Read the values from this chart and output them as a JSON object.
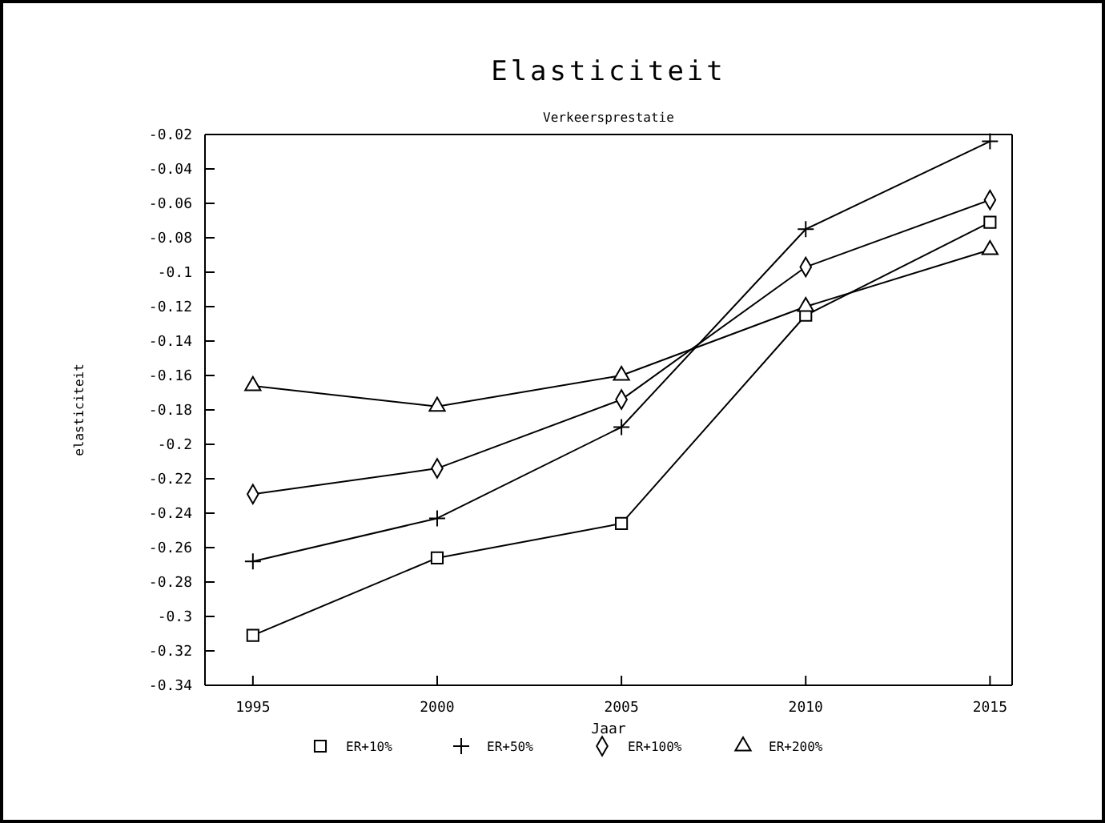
{
  "chart_data": {
    "type": "line",
    "title": "Elasticiteit",
    "subtitle": "Verkeersprestatie",
    "xlabel": "Jaar",
    "ylabel": "elasticiteit",
    "x": [
      1995,
      2000,
      2005,
      2010,
      2015
    ],
    "series": [
      {
        "name": "ER+10%",
        "color": "#000000",
        "marker": "square",
        "values": [
          -0.311,
          -0.266,
          -0.246,
          -0.125,
          -0.071
        ]
      },
      {
        "name": "ER+50%",
        "color": "#000000",
        "marker": "cross",
        "values": [
          -0.268,
          -0.243,
          -0.19,
          -0.075,
          -0.024
        ]
      },
      {
        "name": "ER+100%",
        "color": "#000000",
        "marker": "diamond",
        "values": [
          -0.229,
          -0.214,
          -0.174,
          -0.097,
          -0.058
        ]
      },
      {
        "name": "ER+200%",
        "color": "#000000",
        "marker": "triangle",
        "values": [
          -0.166,
          -0.178,
          -0.16,
          -0.12,
          -0.087
        ]
      }
    ],
    "xlim": [
      1993.7,
      2015.6
    ],
    "xticks": [
      1995,
      2000,
      2005,
      2010,
      2015
    ],
    "ylim": [
      -0.34,
      -0.02
    ],
    "yticks": [
      {
        "value": -0.34,
        "label": "-0.34"
      },
      {
        "value": -0.32,
        "label": "-0.32"
      },
      {
        "value": -0.3,
        "label": "-0.3"
      },
      {
        "value": -0.28,
        "label": "-0.28"
      },
      {
        "value": -0.26,
        "label": "-0.26"
      },
      {
        "value": -0.24,
        "label": "-0.24"
      },
      {
        "value": -0.22,
        "label": "-0.22"
      },
      {
        "value": -0.2,
        "label": "-0.2"
      },
      {
        "value": -0.18,
        "label": "-0.18"
      },
      {
        "value": -0.16,
        "label": "-0.16"
      },
      {
        "value": -0.14,
        "label": "-0.14"
      },
      {
        "value": -0.12,
        "label": "-0.12"
      },
      {
        "value": -0.1,
        "label": "-0.1"
      },
      {
        "value": -0.08,
        "label": "-0.08"
      },
      {
        "value": -0.06,
        "label": "-0.06"
      },
      {
        "value": -0.04,
        "label": "-0.04"
      },
      {
        "value": -0.02,
        "label": "-0.02"
      }
    ],
    "grid": false,
    "legend": "bottom",
    "line_style": "solid"
  }
}
